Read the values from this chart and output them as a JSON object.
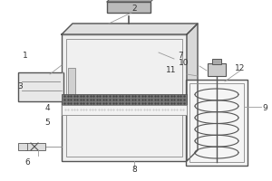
{
  "bg": "#ffffff",
  "lc": "#888888",
  "lc_dark": "#555555",
  "tank_face": "#f0f0f0",
  "tank_top": "#e0e0e0",
  "tank_right": "#d8d8d8",
  "filter_color": "#777777",
  "liquid_color": "#eeeeee",
  "screw_box": "#f5f5f5",
  "left_box": "#e8e8e8",
  "motor_color": "#bbbbbb",
  "label_fs": 6.5
}
